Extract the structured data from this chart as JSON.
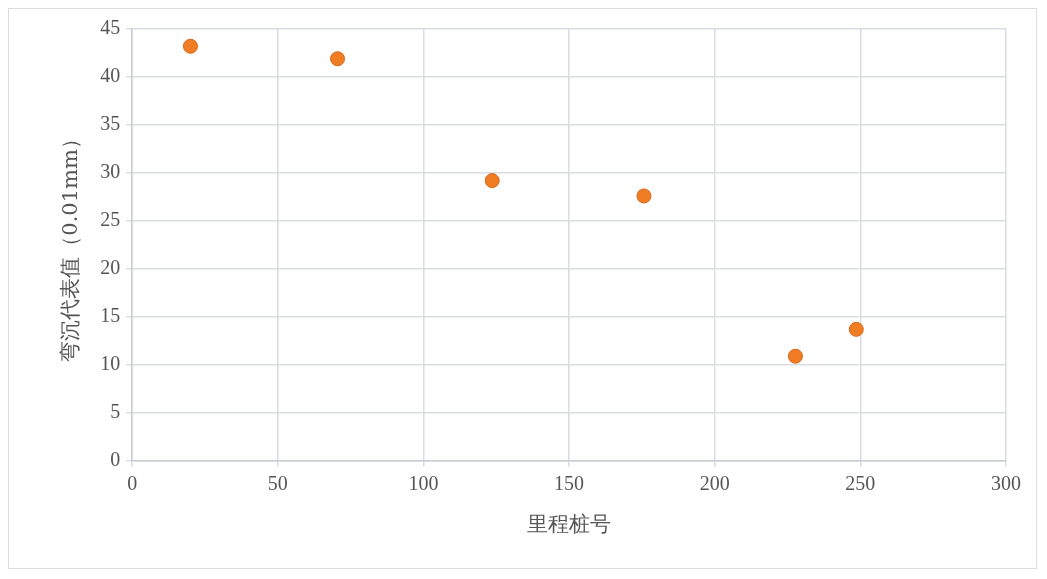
{
  "chart_data": {
    "type": "scatter",
    "xlabel": "里程桩号",
    "ylabel": "弯沉代表值（0.01mm）",
    "series": [
      {
        "color": "#f07d23",
        "x": [
          20,
          70.5,
          123.6,
          175.7,
          227.7,
          248.6
        ],
        "values": [
          43.2,
          41.9,
          29.2,
          27.6,
          10.9,
          13.7
        ]
      }
    ],
    "xlim": [
      0,
      300
    ],
    "xticks": [
      0,
      50,
      100,
      150,
      200,
      250,
      300
    ],
    "ylim": [
      0,
      45
    ],
    "yticks": [
      0,
      5,
      10,
      15,
      20,
      25,
      30,
      35,
      40,
      45
    ],
    "grid": true,
    "legend": false,
    "marker": "circle"
  }
}
